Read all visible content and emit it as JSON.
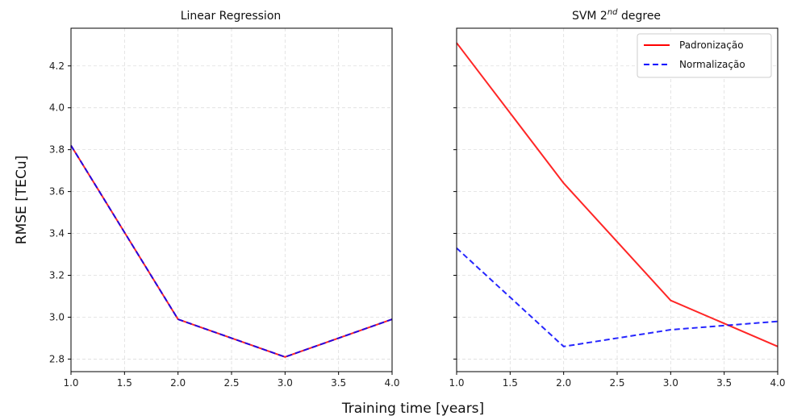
{
  "figure": {
    "xlabel": "Training time [years]",
    "ylabel": "RMSE [TECu]"
  },
  "chart_data": [
    {
      "type": "line",
      "title": "Linear Regression",
      "xlim": [
        1.0,
        4.0
      ],
      "ylim": [
        2.74,
        4.38
      ],
      "xticks": [
        "1.0",
        "1.5",
        "2.0",
        "2.5",
        "3.0",
        "3.5",
        "4.0"
      ],
      "yticks": [
        "2.8",
        "3.0",
        "3.2",
        "3.4",
        "3.6",
        "3.8",
        "4.0",
        "4.2"
      ],
      "grid": true,
      "x": [
        1,
        2,
        3,
        4
      ],
      "series": [
        {
          "color": "#ff0000",
          "dash": "solid",
          "values": [
            3.82,
            2.99,
            2.81,
            2.99
          ]
        },
        {
          "color": "#0000ff",
          "dash": "dashed",
          "values": [
            3.82,
            2.99,
            2.81,
            2.99
          ]
        }
      ]
    },
    {
      "type": "line",
      "title_main": "SVM 2",
      "title_sup": "nd",
      "title_tail": " degree",
      "xlim": [
        1.0,
        4.0
      ],
      "ylim": [
        2.74,
        4.38
      ],
      "xticks": [
        "1.0",
        "1.5",
        "2.0",
        "2.5",
        "3.0",
        "3.5",
        "4.0"
      ],
      "grid": true,
      "legend_position": "top-right",
      "x": [
        1,
        2,
        3,
        4
      ],
      "series": [
        {
          "name": "Padronização",
          "color": "#ff0000",
          "dash": "solid",
          "values": [
            4.31,
            3.64,
            3.08,
            2.86
          ]
        },
        {
          "name": "Normalização",
          "color": "#0000ff",
          "dash": "dashed",
          "values": [
            3.33,
            2.86,
            2.94,
            2.98
          ]
        }
      ]
    }
  ]
}
